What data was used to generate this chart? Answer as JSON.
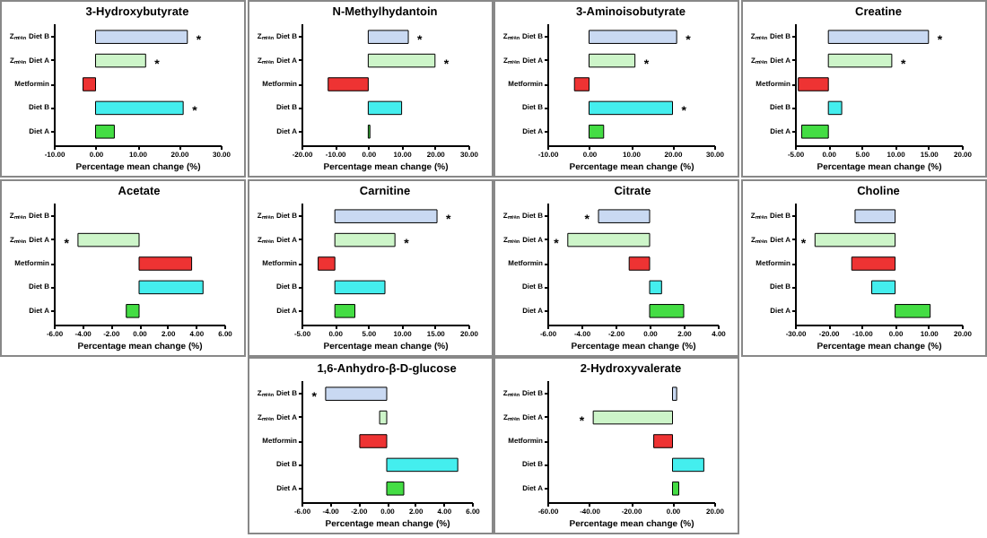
{
  "chart_data": [
    {
      "type": "bar",
      "orientation": "horizontal",
      "title": "3-Hydroxybutyrate",
      "xlabel": "Percentage mean change (%)",
      "categories": [
        "Zₘₑₐₙ Diet B",
        "Zₘₑₐₙ Diet A",
        "Metformin",
        "Diet B",
        "Diet A"
      ],
      "values": [
        22,
        12,
        -3,
        21,
        4.5
      ],
      "colors": [
        "#c9d9f2",
        "#cdf5c9",
        "#ee3333",
        "#44eeee",
        "#44dd44"
      ],
      "xlim": [
        -10,
        30
      ],
      "xticks": [
        {
          "value": -10,
          "label": "-10.00"
        },
        {
          "value": 0,
          "label": "0.00"
        },
        {
          "value": 10,
          "label": "10.00"
        },
        {
          "value": 20,
          "label": "20.00"
        },
        {
          "value": 30,
          "label": "30.00"
        }
      ],
      "annotations": [
        {
          "text": "*",
          "x": 22,
          "y": "Zₘₑₐₙ Diet B"
        },
        {
          "text": "*",
          "x": 12,
          "y": "Zₘₑₐₙ Diet A"
        },
        {
          "text": "*",
          "x": 21,
          "y": "Diet B"
        }
      ]
    },
    {
      "type": "bar",
      "orientation": "horizontal",
      "title": "N-Methylhydantoin",
      "xlabel": "Percentage mean change (%)",
      "categories": [
        "Zₘₑₐₙ Diet B",
        "Zₘₑₐₙ Diet A",
        "Metformin",
        "Diet B",
        "Diet A"
      ],
      "values": [
        12,
        20,
        -12,
        10,
        0.5
      ],
      "colors": [
        "#c9d9f2",
        "#cdf5c9",
        "#ee3333",
        "#44eeee",
        "#44dd44"
      ],
      "xlim": [
        -20,
        30
      ],
      "xticks": [
        {
          "value": -20,
          "label": "-20.00"
        },
        {
          "value": -10,
          "label": "-10.00"
        },
        {
          "value": 0,
          "label": "0.00"
        },
        {
          "value": 10,
          "label": "10.00"
        },
        {
          "value": 20,
          "label": "20.00"
        },
        {
          "value": 30,
          "label": "30.00"
        }
      ],
      "annotations": [
        {
          "text": "*",
          "x": 12,
          "y": "Zₘₑₐₙ Diet B"
        },
        {
          "text": "*",
          "x": 20,
          "y": "Zₘₑₐₙ Diet A"
        }
      ]
    },
    {
      "type": "bar",
      "orientation": "horizontal",
      "title": "3-Aminoisobutyrate",
      "xlabel": "Percentage mean change (%)",
      "categories": [
        "Zₘₑₐₙ Diet B",
        "Zₘₑₐₙ Diet A",
        "Metformin",
        "Diet B",
        "Diet A"
      ],
      "values": [
        21,
        11,
        -3.5,
        20,
        3.5
      ],
      "colors": [
        "#c9d9f2",
        "#cdf5c9",
        "#ee3333",
        "#44eeee",
        "#44dd44"
      ],
      "xlim": [
        -10,
        30
      ],
      "xticks": [
        {
          "value": -10,
          "label": "-10.00"
        },
        {
          "value": 0,
          "label": "0.00"
        },
        {
          "value": 10,
          "label": "10.00"
        },
        {
          "value": 20,
          "label": "20.00"
        },
        {
          "value": 30,
          "label": "30.00"
        }
      ],
      "annotations": [
        {
          "text": "*",
          "x": 21,
          "y": "Zₘₑₐₙ Diet B"
        },
        {
          "text": "*",
          "x": 11,
          "y": "Zₘₑₐₙ Diet A"
        },
        {
          "text": "*",
          "x": 20,
          "y": "Diet B"
        }
      ]
    },
    {
      "type": "bar",
      "orientation": "horizontal",
      "title": "Creatine",
      "xlabel": "Percentage mean change (%)",
      "categories": [
        "Zₘₑₐₙ Diet B",
        "Zₘₑₐₙ Diet A",
        "Metformin",
        "Diet B",
        "Diet A"
      ],
      "values": [
        15,
        9.5,
        -4.5,
        2,
        -4
      ],
      "colors": [
        "#c9d9f2",
        "#cdf5c9",
        "#ee3333",
        "#44eeee",
        "#44dd44"
      ],
      "xlim": [
        -5,
        20
      ],
      "xticks": [
        {
          "value": -5,
          "label": "-5.00"
        },
        {
          "value": 0,
          "label": "0.00"
        },
        {
          "value": 5,
          "label": "5.00"
        },
        {
          "value": 10,
          "label": "10.00"
        },
        {
          "value": 15,
          "label": "15.00"
        },
        {
          "value": 20,
          "label": "20.00"
        }
      ],
      "annotations": [
        {
          "text": "*",
          "x": 15,
          "y": "Zₘₑₐₙ Diet B"
        },
        {
          "text": "*",
          "x": 9.5,
          "y": "Zₘₑₐₙ Diet A"
        }
      ]
    },
    {
      "type": "bar",
      "orientation": "horizontal",
      "title": "Acetate",
      "xlabel": "Percentage mean change (%)",
      "categories": [
        "Zₘₑₐₙ Diet B",
        "Zₘₑₐₙ Diet A",
        "Metformin",
        "Diet B",
        "Diet A"
      ],
      "values": [
        null,
        -4.3,
        3.7,
        4.5,
        -0.9
      ],
      "colors": [
        null,
        "#cdf5c9",
        "#ee3333",
        "#44eeee",
        "#44dd44"
      ],
      "xlim": [
        -6,
        6
      ],
      "xticks": [
        {
          "value": -6,
          "label": "-6.00"
        },
        {
          "value": -4,
          "label": "-4.00"
        },
        {
          "value": -2,
          "label": "-2.00"
        },
        {
          "value": 0,
          "label": "0.00"
        },
        {
          "value": 2,
          "label": "2.00"
        },
        {
          "value": 4,
          "label": "4.00"
        },
        {
          "value": 6,
          "label": "6.00"
        }
      ],
      "annotations": [
        {
          "text": "*",
          "x": -4.3,
          "y": "Zₘₑₐₙ Diet A"
        }
      ]
    },
    {
      "type": "bar",
      "orientation": "horizontal",
      "title": "Carnitine",
      "xlabel": "Percentage mean change (%)",
      "categories": [
        "Zₘₑₐₙ Diet B",
        "Zₘₑₐₙ Diet A",
        "Metformin",
        "Diet B",
        "Diet A"
      ],
      "values": [
        15.3,
        9,
        -2.5,
        7.5,
        3
      ],
      "colors": [
        "#c9d9f2",
        "#cdf5c9",
        "#ee3333",
        "#44eeee",
        "#44dd44"
      ],
      "xlim": [
        -5,
        20
      ],
      "xticks": [
        {
          "value": -5,
          "label": "-5.00"
        },
        {
          "value": 0,
          "label": "0.00"
        },
        {
          "value": 5,
          "label": "5.00"
        },
        {
          "value": 10,
          "label": "10.00"
        },
        {
          "value": 15,
          "label": "15.00"
        },
        {
          "value": 20,
          "label": "20.00"
        }
      ],
      "annotations": [
        {
          "text": "*",
          "x": 15.3,
          "y": "Zₘₑₐₙ Diet B"
        },
        {
          "text": "*",
          "x": 9,
          "y": "Zₘₑₐₙ Diet A"
        }
      ]
    },
    {
      "type": "bar",
      "orientation": "horizontal",
      "title": "Citrate",
      "xlabel": "Percentage mean change (%)",
      "categories": [
        "Zₘₑₐₙ Diet B",
        "Zₘₑₐₙ Diet A",
        "Metformin",
        "Diet B",
        "Diet A"
      ],
      "values": [
        -3,
        -4.8,
        -1.2,
        0.7,
        2
      ],
      "colors": [
        "#c9d9f2",
        "#cdf5c9",
        "#ee3333",
        "#44eeee",
        "#44dd44"
      ],
      "xlim": [
        -6,
        4
      ],
      "xticks": [
        {
          "value": -6,
          "label": "-6.00"
        },
        {
          "value": -4,
          "label": "-4.00"
        },
        {
          "value": -2,
          "label": "-2.00"
        },
        {
          "value": 0,
          "label": "0.00"
        },
        {
          "value": 2,
          "label": "2.00"
        },
        {
          "value": 4,
          "label": "4.00"
        }
      ],
      "annotations": [
        {
          "text": "*",
          "x": -3,
          "y": "Zₘₑₐₙ Diet B"
        },
        {
          "text": "*",
          "x": -4.8,
          "y": "Zₘₑₐₙ Diet A"
        }
      ]
    },
    {
      "type": "bar",
      "orientation": "horizontal",
      "title": "Choline",
      "xlabel": "Percentage mean change (%)",
      "categories": [
        "Zₘₑₐₙ Diet B",
        "Zₘₑₐₙ Diet A",
        "Metformin",
        "Diet B",
        "Diet A"
      ],
      "values": [
        -12,
        -24,
        -13,
        -7,
        10.5
      ],
      "colors": [
        "#c9d9f2",
        "#cdf5c9",
        "#ee3333",
        "#44eeee",
        "#44dd44"
      ],
      "xlim": [
        -30,
        20
      ],
      "xticks": [
        {
          "value": -30,
          "label": "-30.00"
        },
        {
          "value": -20,
          "label": "-20.00"
        },
        {
          "value": -10,
          "label": "-10.00"
        },
        {
          "value": 0,
          "label": "0.00"
        },
        {
          "value": 10,
          "label": "10.00"
        },
        {
          "value": 20,
          "label": "20.00"
        }
      ],
      "annotations": [
        {
          "text": "*",
          "x": -24,
          "y": "Zₘₑₐₙ Diet A"
        }
      ]
    },
    {
      "type": "bar",
      "orientation": "horizontal",
      "title": "1,6-Anhydro-β-D-glucose",
      "xlabel": "Percentage mean change (%)",
      "categories": [
        "Zₘₑₐₙ Diet B",
        "Zₘₑₐₙ Diet A",
        "Metformin",
        "Diet B",
        "Diet A"
      ],
      "values": [
        -4.3,
        -0.5,
        -1.9,
        5,
        1.2
      ],
      "colors": [
        "#c9d9f2",
        "#cdf5c9",
        "#ee3333",
        "#44eeee",
        "#44dd44"
      ],
      "xlim": [
        -6,
        6
      ],
      "xticks": [
        {
          "value": -6,
          "label": "-6.00"
        },
        {
          "value": -4,
          "label": "-4.00"
        },
        {
          "value": -2,
          "label": "-2.00"
        },
        {
          "value": 0,
          "label": "0.00"
        },
        {
          "value": 2,
          "label": "2.00"
        },
        {
          "value": 4,
          "label": "4.00"
        },
        {
          "value": 6,
          "label": "6.00"
        }
      ],
      "annotations": [
        {
          "text": "*",
          "x": -4.3,
          "y": "Zₘₑₐₙ Diet B"
        }
      ]
    },
    {
      "type": "bar",
      "orientation": "horizontal",
      "title": "2-Hydroxyvalerate",
      "xlabel": "Percentage mean change (%)",
      "categories": [
        "Zₘₑₐₙ Diet B",
        "Zₘₑₐₙ Diet A",
        "Metformin",
        "Diet B",
        "Diet A"
      ],
      "values": [
        2,
        -38,
        -9,
        15,
        3
      ],
      "colors": [
        "#c9d9f2",
        "#cdf5c9",
        "#ee3333",
        "#44eeee",
        "#44dd44"
      ],
      "xlim": [
        -60,
        20
      ],
      "xticks": [
        {
          "value": -60,
          "label": "-60.00"
        },
        {
          "value": -40,
          "label": "-40.00"
        },
        {
          "value": -20,
          "label": "-20.00"
        },
        {
          "value": 0,
          "label": "0.00"
        },
        {
          "value": 20,
          "label": "20.00"
        }
      ],
      "annotations": [
        {
          "text": "*",
          "x": -38,
          "y": "Zₘₑₐₙ Diet A"
        }
      ]
    }
  ]
}
